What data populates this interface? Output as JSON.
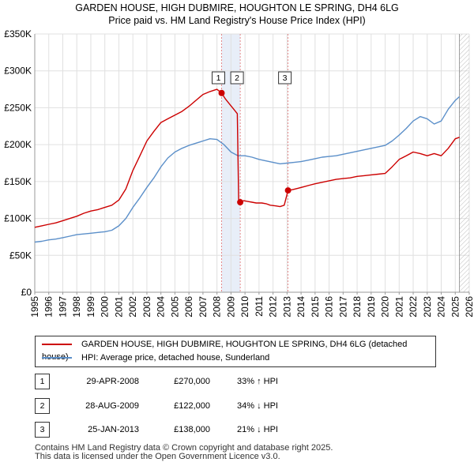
{
  "title_line1": "GARDEN HOUSE, HIGH DUBMIRE, HOUGHTON LE SPRING, DH4 6LG",
  "title_line2": "Price paid vs. HM Land Registry's House Price Index (HPI)",
  "chart_data": {
    "type": "line",
    "x_range": [
      1995,
      2026
    ],
    "ylim": [
      0,
      350000
    ],
    "y_ticks": [
      {
        "value": 0,
        "label": "£0"
      },
      {
        "value": 50000,
        "label": "£50K"
      },
      {
        "value": 100000,
        "label": "£100K"
      },
      {
        "value": 150000,
        "label": "£150K"
      },
      {
        "value": 200000,
        "label": "£200K"
      },
      {
        "value": 250000,
        "label": "£250K"
      },
      {
        "value": 300000,
        "label": "£300K"
      },
      {
        "value": 350000,
        "label": "£350K"
      }
    ],
    "x_ticks": [
      "1995",
      "1996",
      "1997",
      "1998",
      "1999",
      "2000",
      "2001",
      "2002",
      "2003",
      "2004",
      "2005",
      "2006",
      "2007",
      "2008",
      "2009",
      "2010",
      "2011",
      "2012",
      "2013",
      "2014",
      "2015",
      "2016",
      "2017",
      "2018",
      "2019",
      "2020",
      "2021",
      "2022",
      "2023",
      "2024",
      "2025",
      "2026"
    ],
    "grid": true,
    "series": [
      {
        "name": "GARDEN HOUSE, HIGH DUBMIRE, HOUGHTON LE SPRING, DH4 6LG (detached house)",
        "color": "#cc0000",
        "x": [
          1995.0,
          1995.5,
          1996.0,
          1996.5,
          1997.0,
          1997.5,
          1998.0,
          1998.5,
          1999.0,
          1999.5,
          2000.0,
          2000.5,
          2001.0,
          2001.5,
          2002.0,
          2002.5,
          2003.0,
          2003.5,
          2004.0,
          2004.5,
          2005.0,
          2005.5,
          2006.0,
          2006.5,
          2007.0,
          2007.5,
          2008.0,
          2008.33,
          2008.6,
          2008.9,
          2009.2,
          2009.45,
          2009.55,
          2009.66,
          2009.9,
          2010.2,
          2010.5,
          2010.8,
          2011.2,
          2011.5,
          2011.8,
          2012.2,
          2012.5,
          2012.8,
          2013.07,
          2013.4,
          2013.8,
          2014.2,
          2014.6,
          2015.0,
          2015.5,
          2016.0,
          2016.5,
          2017.0,
          2017.5,
          2018.0,
          2018.5,
          2019.0,
          2019.5,
          2020.0,
          2020.5,
          2021.0,
          2021.5,
          2022.0,
          2022.5,
          2023.0,
          2023.5,
          2024.0,
          2024.5,
          2025.0,
          2025.3
        ],
        "values": [
          88000,
          90000,
          92000,
          94000,
          97000,
          100000,
          103000,
          107000,
          110000,
          112000,
          115000,
          118000,
          125000,
          140000,
          165000,
          185000,
          205000,
          218000,
          230000,
          235000,
          240000,
          245000,
          252000,
          260000,
          268000,
          272000,
          275000,
          270000,
          262000,
          255000,
          248000,
          242000,
          124000,
          122000,
          124000,
          123000,
          122000,
          121000,
          121000,
          120000,
          118000,
          117000,
          116000,
          118000,
          138000,
          139000,
          141000,
          143000,
          145000,
          147000,
          149000,
          151000,
          153000,
          154000,
          155000,
          157000,
          158000,
          159000,
          160000,
          161000,
          170000,
          180000,
          185000,
          190000,
          188000,
          185000,
          188000,
          185000,
          195000,
          208000,
          210000
        ]
      },
      {
        "name": "HPI: Average price, detached house, Sunderland",
        "color": "#5b8fc9",
        "x": [
          1995.0,
          1995.5,
          1996.0,
          1996.5,
          1997.0,
          1997.5,
          1998.0,
          1998.5,
          1999.0,
          1999.5,
          2000.0,
          2000.5,
          2001.0,
          2001.5,
          2002.0,
          2002.5,
          2003.0,
          2003.5,
          2004.0,
          2004.5,
          2005.0,
          2005.5,
          2006.0,
          2006.5,
          2007.0,
          2007.5,
          2008.0,
          2008.5,
          2009.0,
          2009.5,
          2010.0,
          2010.5,
          2011.0,
          2011.5,
          2012.0,
          2012.5,
          2013.0,
          2013.5,
          2014.0,
          2014.5,
          2015.0,
          2015.5,
          2016.0,
          2016.5,
          2017.0,
          2017.5,
          2018.0,
          2018.5,
          2019.0,
          2019.5,
          2020.0,
          2020.5,
          2021.0,
          2021.5,
          2022.0,
          2022.5,
          2023.0,
          2023.5,
          2024.0,
          2024.5,
          2025.0,
          2025.3
        ],
        "values": [
          68000,
          69000,
          71000,
          72000,
          74000,
          76000,
          78000,
          79000,
          80000,
          81000,
          82000,
          84000,
          90000,
          100000,
          115000,
          128000,
          142000,
          155000,
          170000,
          182000,
          190000,
          195000,
          199000,
          202000,
          205000,
          208000,
          207000,
          200000,
          190000,
          185000,
          185000,
          183000,
          180000,
          178000,
          176000,
          174000,
          175000,
          176000,
          177000,
          179000,
          181000,
          183000,
          184000,
          185000,
          187000,
          189000,
          191000,
          193000,
          195000,
          197000,
          199000,
          205000,
          213000,
          222000,
          232000,
          238000,
          235000,
          228000,
          232000,
          248000,
          260000,
          265000
        ]
      }
    ],
    "sales": [
      {
        "num": "1",
        "x": 2008.33,
        "value": 270000
      },
      {
        "num": "2",
        "x": 2009.66,
        "value": 122000
      },
      {
        "num": "3",
        "x": 2013.07,
        "value": 138000
      }
    ],
    "hatch_from": 2025.3
  },
  "legend": {
    "line1": "GARDEN HOUSE, HIGH DUBMIRE, HOUGHTON LE SPRING, DH4 6LG (detached house)",
    "line2": "HPI: Average price, detached house, Sunderland",
    "color1": "#cc0000",
    "color2": "#5b8fc9"
  },
  "table": [
    {
      "num": "1",
      "date": "29-APR-2008",
      "price": "£270,000",
      "hpi": "33% ↑ HPI"
    },
    {
      "num": "2",
      "date": "28-AUG-2009",
      "price": "£122,000",
      "hpi": "34% ↓ HPI"
    },
    {
      "num": "3",
      "date": "25-JAN-2013",
      "price": "£138,000",
      "hpi": "21% ↓ HPI"
    }
  ],
  "footer_line1": "Contains HM Land Registry data © Crown copyright and database right 2025.",
  "footer_line2": "This data is licensed under the Open Government Licence v3.0."
}
